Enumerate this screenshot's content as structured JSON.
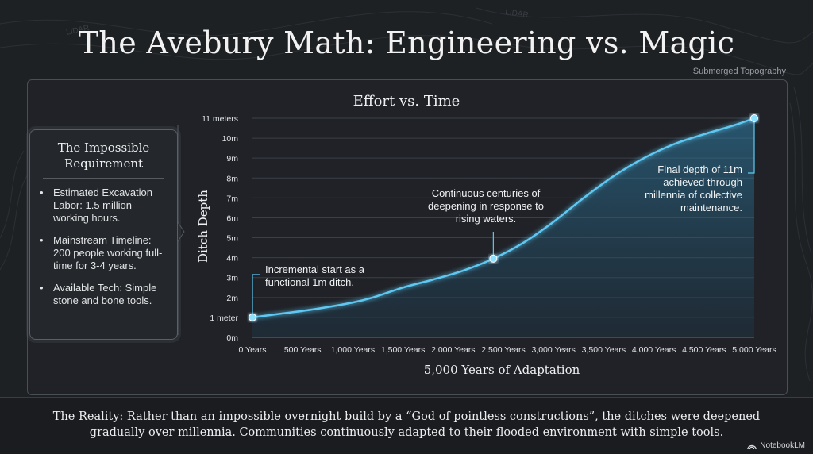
{
  "title": "The Avebury Math: Engineering vs. Magic",
  "corner_label": "Submerged Topography",
  "background_labels": [
    "LIDAR",
    "LIDAR"
  ],
  "sidebar": {
    "heading": "The Impossible Requirement",
    "bullets": [
      "Estimated Excavation Labor: 1.5 million working hours.",
      "Mainstream Timeline: 200 people working full-time for 3-4 years.",
      "Available Tech: Simple stone and bone tools."
    ]
  },
  "chart_data": {
    "type": "area",
    "title": "Effort vs. Time",
    "xlabel": "5,000 Years of Adaptation",
    "ylabel": "Ditch Depth",
    "x_tick_labels": [
      "0 Years",
      "500 Years",
      "1,000 Years",
      "1,500 Years",
      "2,000 Years",
      "2,500 Years",
      "3,000 Years",
      "3,500 Years",
      "4,000 Years",
      "4,500 Years",
      "5,000 Years"
    ],
    "y_tick_labels": [
      "0m",
      "1 meter",
      "2m",
      "3m",
      "4m",
      "5m",
      "6m",
      "7m",
      "8m",
      "9m",
      "10m",
      "11 meters"
    ],
    "xlim": [
      0,
      5000
    ],
    "ylim": [
      0,
      11
    ],
    "grid": true,
    "series": [
      {
        "x": [
          0,
          300,
          600,
          1000,
          1200,
          1500,
          1800,
          2100,
          2400,
          2700,
          3000,
          3300,
          3600,
          3900,
          4200,
          4500,
          4800,
          5000
        ],
        "y": [
          1.0,
          1.2,
          1.4,
          1.75,
          2.0,
          2.5,
          2.9,
          3.35,
          3.95,
          4.75,
          5.8,
          7.0,
          8.1,
          9.0,
          9.7,
          10.2,
          10.65,
          11.0
        ]
      }
    ],
    "highlight_points": [
      {
        "x": 0,
        "y": 1
      },
      {
        "x": 2400,
        "y": 3.95
      },
      {
        "x": 5000,
        "y": 11
      }
    ],
    "annotations": [
      {
        "text": "Incremental start as a functional 1m ditch.",
        "lines": [
          "Incremental start as a",
          "functional 1m ditch."
        ]
      },
      {
        "text": "Continuous centuries of deepening in response to rising waters.",
        "lines": [
          "Continuous centuries of",
          "deepening in response to",
          "rising waters."
        ]
      },
      {
        "text": "Final depth of 11m achieved through millennia of collective maintenance.",
        "lines": [
          "Final depth of 11m",
          "achieved through",
          "millennia of collective",
          "maintenance."
        ]
      }
    ],
    "colors": {
      "line": "#5ec8f2",
      "fill": "#2a6f94",
      "point": "#8fe0ff"
    }
  },
  "footer": {
    "text": "The Reality: Rather than an impossible overnight build by a “God of pointless constructions”, the ditches were deepened gradually over millennia. Communities continuously adapted to their flooded environment with simple tools."
  },
  "brand": {
    "name": "NotebookLM",
    "icon": "notebooklm-logo-icon"
  }
}
